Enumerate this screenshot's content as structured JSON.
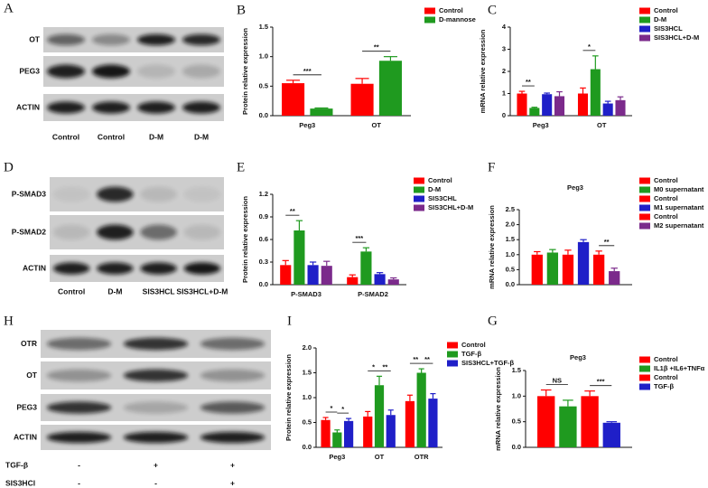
{
  "blots": [
    {
      "label": "A",
      "rows": [
        "OT",
        "PEG3",
        "ACTIN"
      ],
      "lanes": [
        "Control",
        "Control",
        "D-M",
        "D-M"
      ]
    },
    {
      "label": "D",
      "rows": [
        "P-SMAD3",
        "P-SMAD2",
        "ACTIN"
      ],
      "lanes": [
        "Control",
        "D-M",
        "SIS3HCL",
        "SIS3HCL+D-M"
      ]
    },
    {
      "label": "H",
      "rows": [
        "OTR",
        "OT",
        "PEG3",
        "ACTIN"
      ],
      "conditions": [
        {
          "name": "TGF-β",
          "marks": [
            "-",
            "+",
            "+"
          ]
        },
        {
          "name": "SIS3HCl",
          "marks": [
            "-",
            "-",
            "+"
          ]
        }
      ]
    }
  ],
  "chart_data": [
    {
      "type": "bar",
      "label": "B",
      "ylabel": "Protein relative expression",
      "categories": [
        "Peg3",
        "OT"
      ],
      "series": [
        {
          "name": "Control",
          "color": "#ff0000",
          "values": [
            0.55,
            0.54
          ],
          "errors": [
            0.05,
            0.09
          ]
        },
        {
          "name": "D-mannose",
          "color": "#1f9a1f",
          "values": [
            0.12,
            0.93
          ],
          "errors": [
            0.01,
            0.07
          ]
        }
      ],
      "ylim": [
        0,
        1.5
      ],
      "yticks": [
        {
          "value": 0,
          "label": "0.0"
        },
        {
          "value": 0.5,
          "label": "0.5"
        },
        {
          "value": 1,
          "label": "1.0"
        },
        {
          "value": 1.5,
          "label": "1.5"
        }
      ],
      "annotations": [
        "***",
        "**"
      ]
    },
    {
      "type": "bar",
      "label": "C",
      "ylabel": "mRNA relative expression",
      "categories": [
        "Peg3",
        "OT"
      ],
      "series": [
        {
          "name": "Control",
          "color": "#ff0000",
          "values": [
            1.0,
            1.0
          ],
          "errors": [
            0.1,
            0.25
          ]
        },
        {
          "name": "D-M",
          "color": "#1f9a1f",
          "values": [
            0.35,
            2.1
          ],
          "errors": [
            0.03,
            0.6
          ]
        },
        {
          "name": "SIS3HCL",
          "color": "#1f1fc8",
          "values": [
            0.97,
            0.55
          ],
          "errors": [
            0.05,
            0.1
          ]
        },
        {
          "name": "SIS3HCL+D-M",
          "color": "#7b2a8b",
          "values": [
            0.88,
            0.7
          ],
          "errors": [
            0.2,
            0.15
          ]
        }
      ],
      "ylim": [
        0,
        4
      ],
      "yticks": [
        0,
        1,
        2,
        3,
        4
      ],
      "annotations": [
        "**",
        "*"
      ]
    },
    {
      "type": "bar",
      "label": "E",
      "ylabel": "Protein relative  expression",
      "categories": [
        "P-SMAD3",
        "P-SMAD2"
      ],
      "series": [
        {
          "name": "Control",
          "color": "#ff0000",
          "values": [
            0.26,
            0.1
          ],
          "errors": [
            0.06,
            0.03
          ]
        },
        {
          "name": "D-M",
          "color": "#1f9a1f",
          "values": [
            0.72,
            0.44
          ],
          "errors": [
            0.13,
            0.05
          ]
        },
        {
          "name": "SIS3CHL",
          "color": "#1f1fc8",
          "values": [
            0.26,
            0.14
          ],
          "errors": [
            0.04,
            0.02
          ]
        },
        {
          "name": "SIS3CHL+D-M",
          "color": "#7b2a8b",
          "values": [
            0.25,
            0.07
          ],
          "errors": [
            0.06,
            0.02
          ]
        }
      ],
      "ylim": [
        0,
        1.2
      ],
      "yticks": [
        {
          "value": 0,
          "label": "0.0"
        },
        {
          "value": 0.3,
          "label": "0.3"
        },
        {
          "value": 0.6,
          "label": "0.6"
        },
        {
          "value": 0.9,
          "label": "0.9"
        },
        {
          "value": 1.2,
          "label": "1.2"
        }
      ],
      "annotations": [
        "**",
        "***"
      ]
    },
    {
      "type": "bar",
      "label": "F",
      "title": "Peg3",
      "ylabel": "mRNA relative expression",
      "categories": [
        null
      ],
      "series": [
        {
          "name": "Control",
          "color": "#ff0000",
          "values": [
            1.0
          ],
          "errors": [
            0.1
          ]
        },
        {
          "name": "M0 supernatant",
          "color": "#1f9a1f",
          "values": [
            1.07
          ],
          "errors": [
            0.1
          ]
        },
        {
          "name": "Control",
          "color": "#ff0000",
          "values": [
            1.0
          ],
          "errors": [
            0.15
          ]
        },
        {
          "name": "M1 supernatant",
          "color": "#1f1fc8",
          "values": [
            1.42
          ],
          "errors": [
            0.08
          ]
        },
        {
          "name": "Control",
          "color": "#ff0000",
          "values": [
            1.0
          ],
          "errors": [
            0.12
          ]
        },
        {
          "name": "M2 supernatant",
          "color": "#7b2a8b",
          "values": [
            0.45
          ],
          "errors": [
            0.1
          ]
        }
      ],
      "ylim": [
        0,
        2.5
      ],
      "yticks": [
        {
          "value": 0,
          "label": "0.0"
        },
        {
          "value": 0.5,
          "label": "0.5"
        },
        {
          "value": 1,
          "label": "1.0"
        },
        {
          "value": 1.5,
          "label": "1.5"
        },
        {
          "value": 2,
          "label": "2.0"
        },
        {
          "value": 2.5,
          "label": "2.5"
        }
      ],
      "annotations": [
        "**"
      ]
    },
    {
      "type": "bar",
      "label": "I",
      "ylabel": "Protein relative  expression",
      "categories": [
        "Peg3",
        "OT",
        "OTR"
      ],
      "series": [
        {
          "name": "Control",
          "color": "#ff0000",
          "values": [
            0.55,
            0.62,
            0.93
          ],
          "errors": [
            0.05,
            0.1,
            0.12
          ]
        },
        {
          "name": "TGF-β",
          "color": "#1f9a1f",
          "values": [
            0.3,
            1.25,
            1.5
          ],
          "errors": [
            0.05,
            0.18,
            0.08
          ]
        },
        {
          "name": "SIS3HCL+TGF-β",
          "color": "#1f1fc8",
          "values": [
            0.53,
            0.65,
            0.98
          ],
          "errors": [
            0.05,
            0.1,
            0.1
          ]
        }
      ],
      "ylim": [
        0,
        2
      ],
      "yticks": [
        {
          "value": 0,
          "label": "0.0"
        },
        {
          "value": 0.5,
          "label": "0.5"
        },
        {
          "value": 1,
          "label": "1.0"
        },
        {
          "value": 1.5,
          "label": "1.5"
        },
        {
          "value": 2,
          "label": "2.0"
        }
      ],
      "annotations": [
        "*",
        "*",
        "*",
        "**",
        "**",
        "**"
      ]
    },
    {
      "type": "bar",
      "label": "G",
      "title": "Peg3",
      "ylabel": "mRNA relative expression",
      "categories": [
        null
      ],
      "series": [
        {
          "name": "Control",
          "color": "#ff0000",
          "values": [
            1.0
          ],
          "errors": [
            0.12
          ]
        },
        {
          "name": "IL1β +IL6+TNFα",
          "color": "#1f9a1f",
          "values": [
            0.8
          ],
          "errors": [
            0.12
          ]
        },
        {
          "name": "Control",
          "color": "#ff0000",
          "values": [
            1.0
          ],
          "errors": [
            0.1
          ]
        },
        {
          "name": "TGF-β",
          "color": "#1f1fc8",
          "values": [
            0.48
          ],
          "errors": [
            0.02
          ]
        }
      ],
      "ylim": [
        0,
        1.5
      ],
      "yticks": [
        {
          "value": 0,
          "label": "0.0"
        },
        {
          "value": 0.5,
          "label": "0.5"
        },
        {
          "value": 1,
          "label": "1.0"
        },
        {
          "value": 1.5,
          "label": "1.5"
        }
      ],
      "annotations": [
        "NS",
        "***"
      ]
    }
  ]
}
